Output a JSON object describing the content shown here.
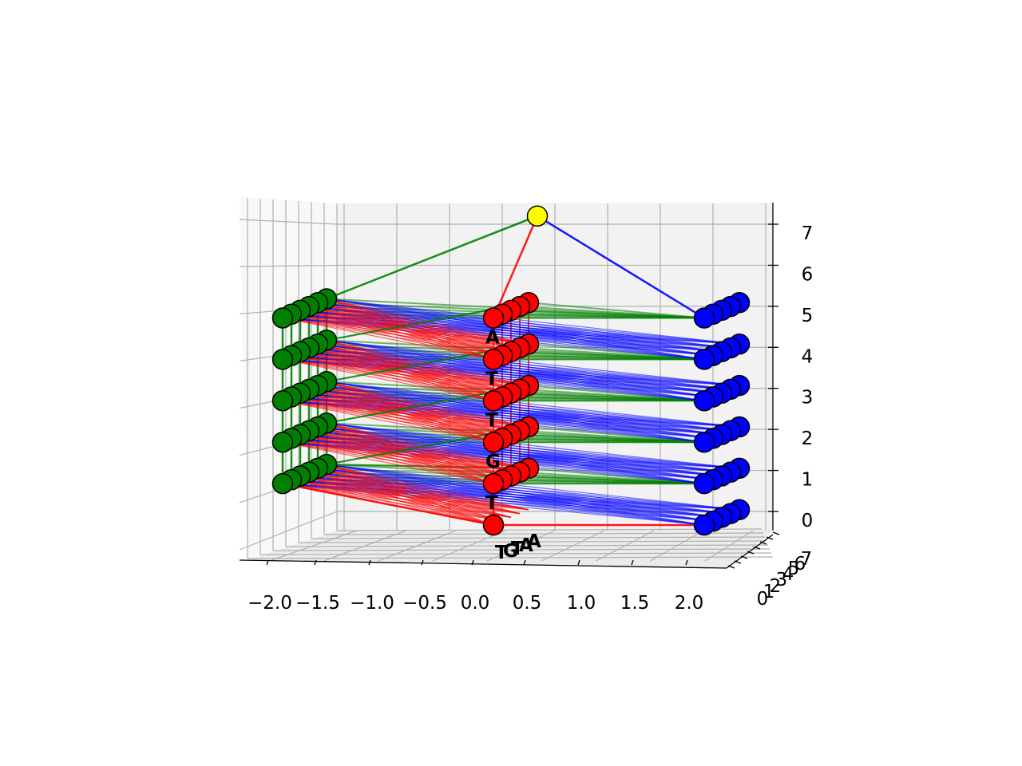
{
  "chart_data": {
    "type": "scatter",
    "projection": "3d",
    "title": "",
    "xlabel": "",
    "ylabel": "",
    "zlabel": "",
    "grid": true,
    "x_ticks": [
      "−2.0",
      "−1.5",
      "−1.0",
      "−0.5",
      "0.0",
      "0.5",
      "1.0",
      "1.5",
      "2.0"
    ],
    "y_ticks": [
      "0",
      "1",
      "2",
      "3",
      "4",
      "5",
      "6",
      "7"
    ],
    "z_ticks": [
      "0",
      "1",
      "2",
      "3",
      "4",
      "5",
      "6",
      "7"
    ],
    "xlim": [
      -2.2,
      2.2
    ],
    "ylim": [
      0,
      7
    ],
    "zlim": [
      -0.3,
      7.3
    ],
    "colors": {
      "nodes_left": "#008000",
      "nodes_middle": "#ff0000",
      "nodes_right": "#0000ff",
      "root": "#ffff00",
      "edge_green": "#008000",
      "edge_red": "#ff0000",
      "edge_blue": "#0000ff",
      "grid": "#b0b0b0",
      "pane": "#f2f2f2"
    },
    "series": [
      {
        "name": "",
        "color": "#008000",
        "x": -2,
        "y": [
          0,
          1,
          2,
          3,
          4,
          5
        ],
        "z": [
          1,
          2,
          3,
          4,
          5
        ]
      },
      {
        "name": "",
        "color": "#ff0000",
        "x": 0,
        "y": [
          0,
          1,
          2,
          3,
          4
        ],
        "z": [
          0,
          1,
          2,
          3,
          4,
          5
        ]
      },
      {
        "name": "",
        "color": "#0000ff",
        "x": 2,
        "y": [
          0,
          1,
          2,
          3,
          4
        ],
        "z": [
          0,
          1,
          2,
          3,
          4,
          5
        ]
      },
      {
        "name": "",
        "color": "#ffff00",
        "x": 0,
        "y": [
          5
        ],
        "z": [
          7
        ]
      }
    ],
    "sequence_labels": [
      "A",
      "T",
      "T",
      "G",
      "T"
    ],
    "base_labels": [
      "T",
      "G",
      "T",
      "A",
      "A"
    ]
  }
}
